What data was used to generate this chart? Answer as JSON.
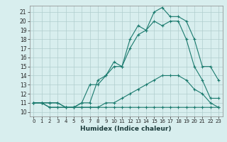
{
  "xlabel": "Humidex (Indice chaleur)",
  "x": [
    0,
    1,
    2,
    3,
    4,
    5,
    6,
    7,
    8,
    9,
    10,
    11,
    12,
    13,
    14,
    15,
    16,
    17,
    18,
    19,
    20,
    21,
    22,
    23
  ],
  "line1": [
    11,
    11,
    11,
    11,
    10.5,
    10.5,
    11,
    11,
    13.5,
    14,
    15.5,
    15,
    18,
    19.5,
    19,
    21,
    21.5,
    20.5,
    20.5,
    20,
    18,
    15,
    15,
    13.5
  ],
  "line2": [
    11,
    11,
    11,
    11,
    10.5,
    10.5,
    11,
    13,
    13,
    14,
    15,
    15,
    17,
    18.5,
    19,
    20,
    19.5,
    20,
    20,
    18,
    15,
    13.5,
    11.5,
    11.5
  ],
  "line3": [
    11,
    11,
    10.5,
    10.5,
    10.5,
    10.5,
    10.5,
    10.5,
    10.5,
    11,
    11,
    11.5,
    12,
    12.5,
    13,
    13.5,
    14,
    14,
    14,
    13.5,
    12.5,
    12,
    11,
    10.5
  ],
  "line4": [
    11,
    11,
    10.5,
    10.5,
    10.5,
    10.5,
    10.5,
    10.5,
    10.5,
    10.5,
    10.5,
    10.5,
    10.5,
    10.5,
    10.5,
    10.5,
    10.5,
    10.5,
    10.5,
    10.5,
    10.5,
    10.5,
    10.5,
    10.5
  ],
  "line_color": "#1a7a6e",
  "bg_color": "#d8eeee",
  "grid_color": "#b0cece",
  "ylim": [
    9.5,
    21.7
  ],
  "xlim": [
    -0.5,
    23.5
  ],
  "yticks": [
    10,
    11,
    12,
    13,
    14,
    15,
    16,
    17,
    18,
    19,
    20,
    21
  ],
  "xticks": [
    0,
    1,
    2,
    3,
    4,
    5,
    6,
    7,
    8,
    9,
    10,
    11,
    12,
    13,
    14,
    15,
    16,
    17,
    18,
    19,
    20,
    21,
    22,
    23
  ],
  "marker": "+"
}
